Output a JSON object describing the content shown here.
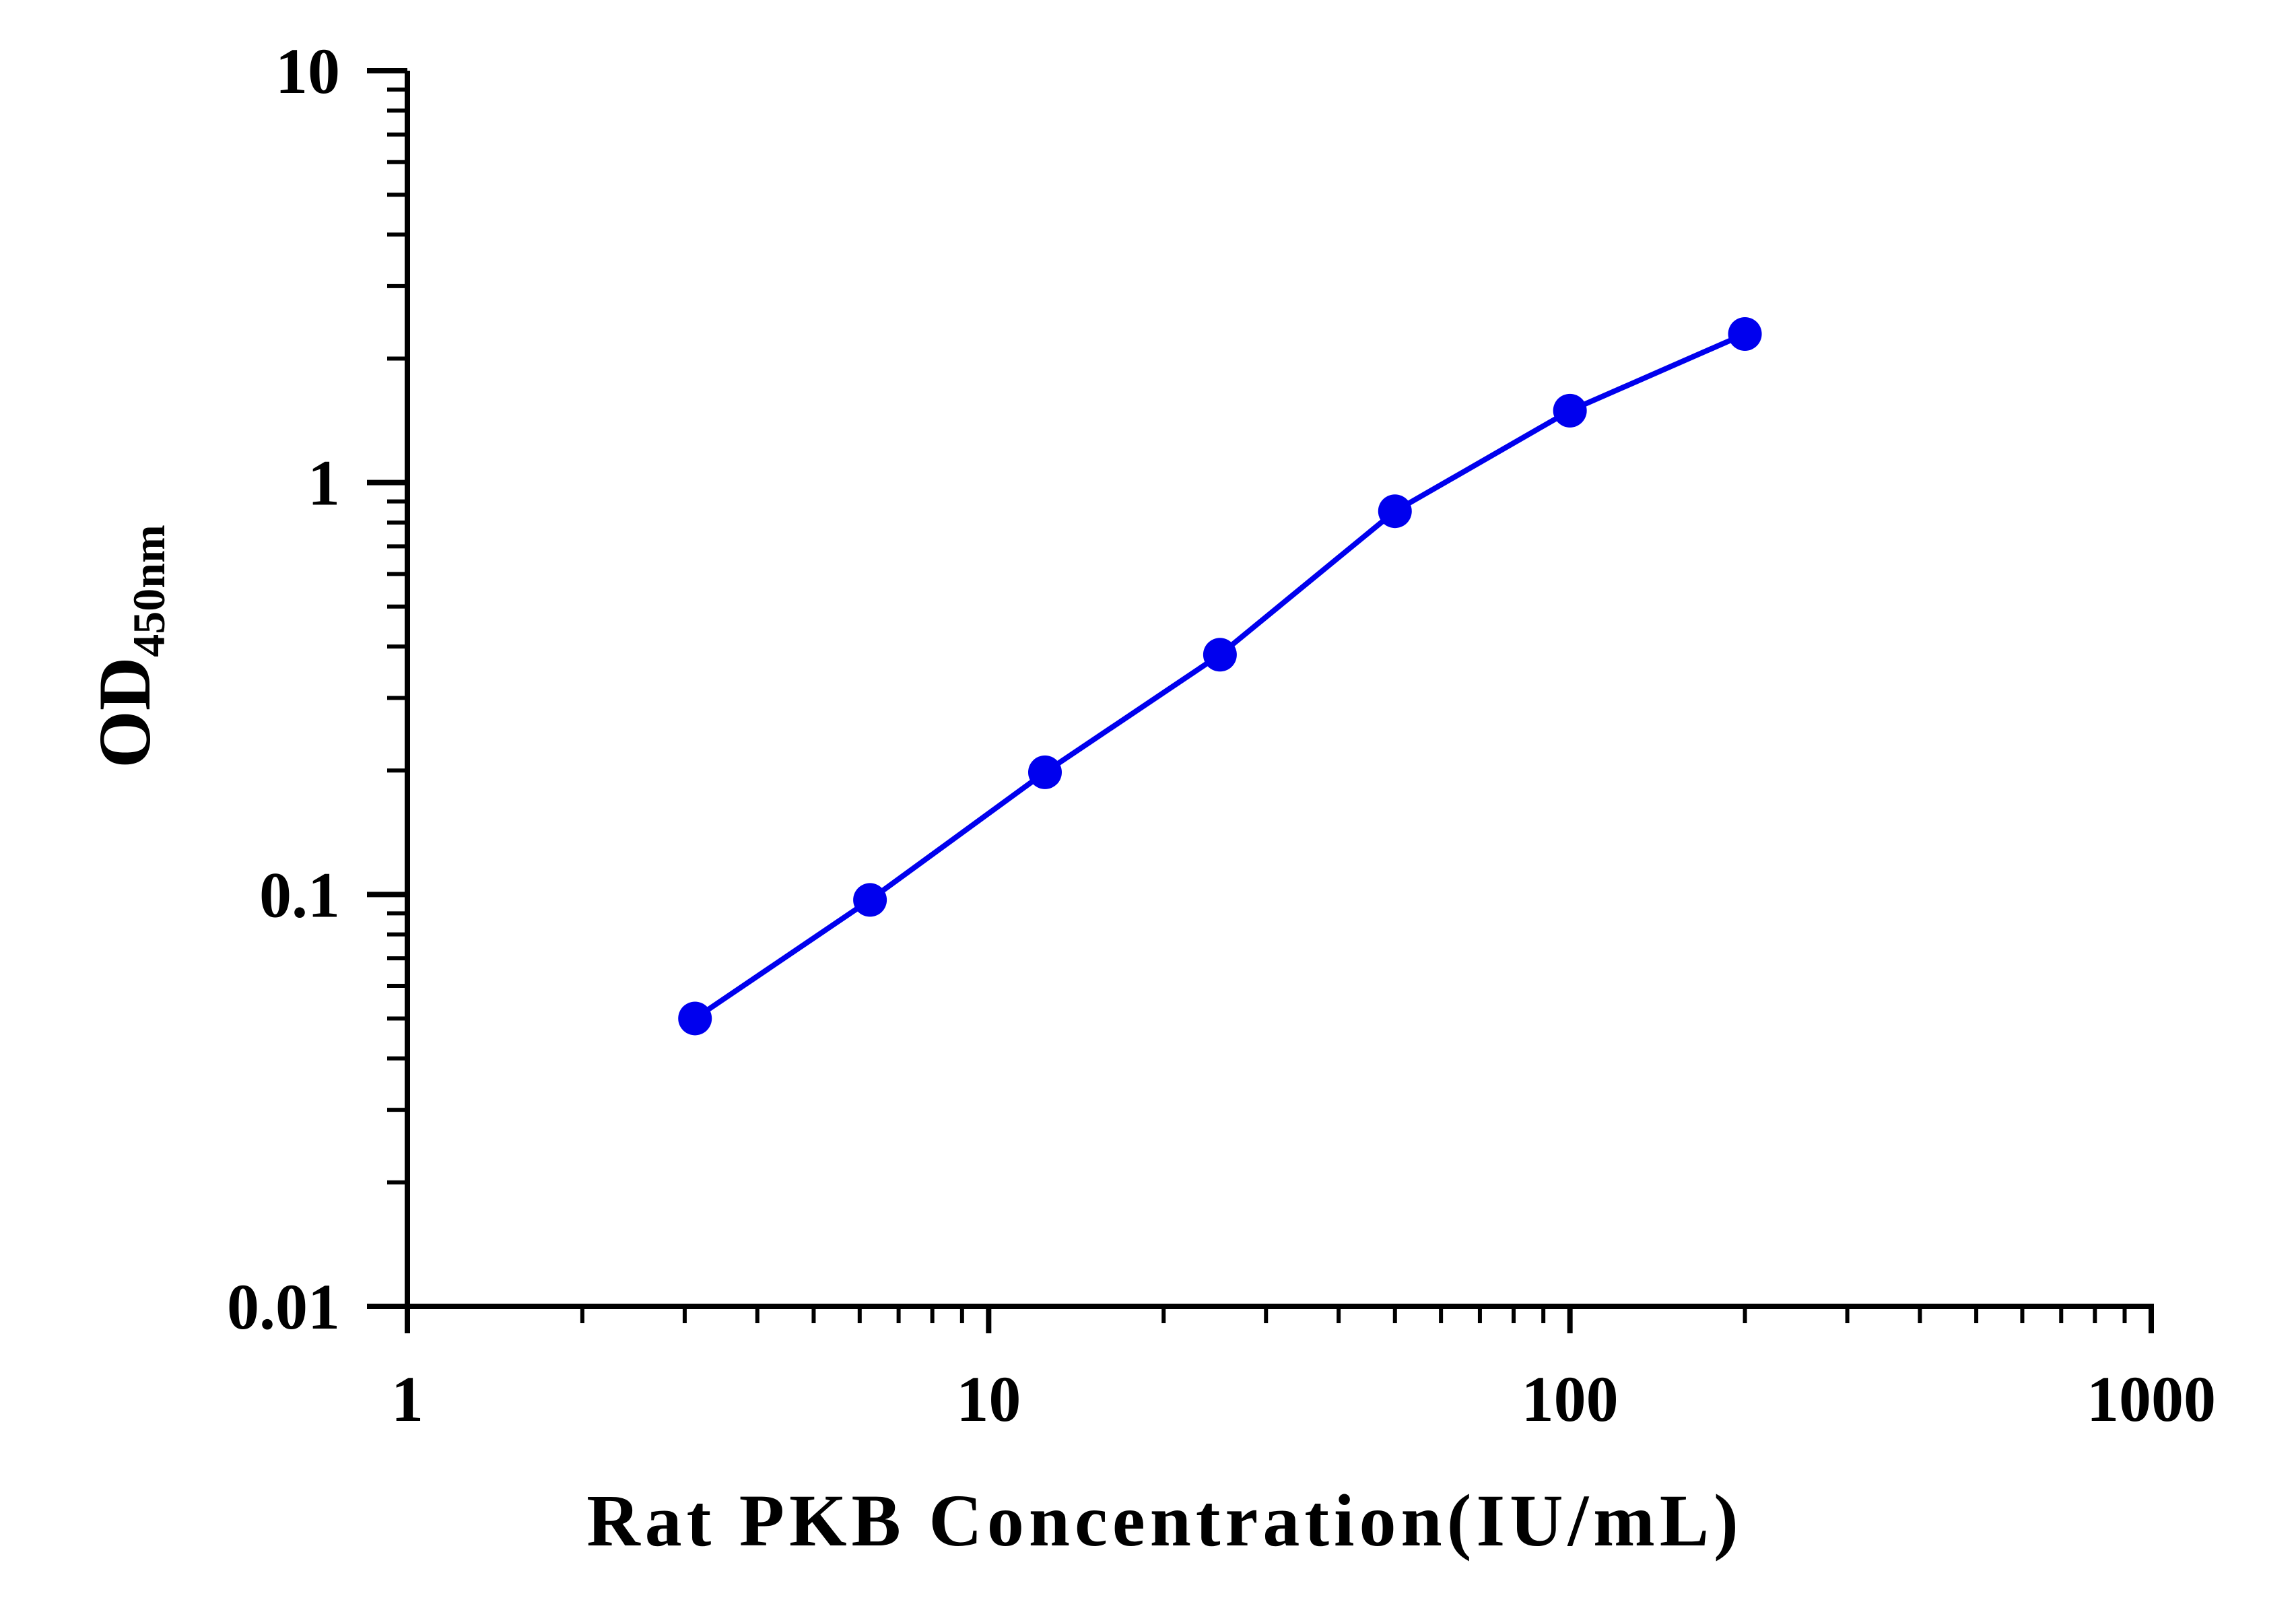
{
  "chart_data": {
    "type": "line",
    "title": "",
    "xlabel": "Rat PKB Concentration(IU/mL)",
    "ylabel": {
      "main": "OD",
      "subscript": "450nm"
    },
    "x_scale": "log",
    "y_scale": "log",
    "xlim": [
      1,
      1000
    ],
    "ylim": [
      0.01,
      10
    ],
    "x_tick_labels": [
      "1",
      "10",
      "100",
      "1000"
    ],
    "y_tick_labels": [
      "0.01",
      "0.1",
      "1",
      "10"
    ],
    "grid": false,
    "legend": "none",
    "series": [
      {
        "color": "#0000ee",
        "marker": "circle",
        "points": [
          {
            "x": 3.125,
            "y": 0.05
          },
          {
            "x": 6.25,
            "y": 0.097
          },
          {
            "x": 12.5,
            "y": 0.198
          },
          {
            "x": 25,
            "y": 0.382
          },
          {
            "x": 50,
            "y": 0.852
          },
          {
            "x": 100,
            "y": 1.495
          },
          {
            "x": 200,
            "y": 2.295
          }
        ]
      }
    ]
  }
}
